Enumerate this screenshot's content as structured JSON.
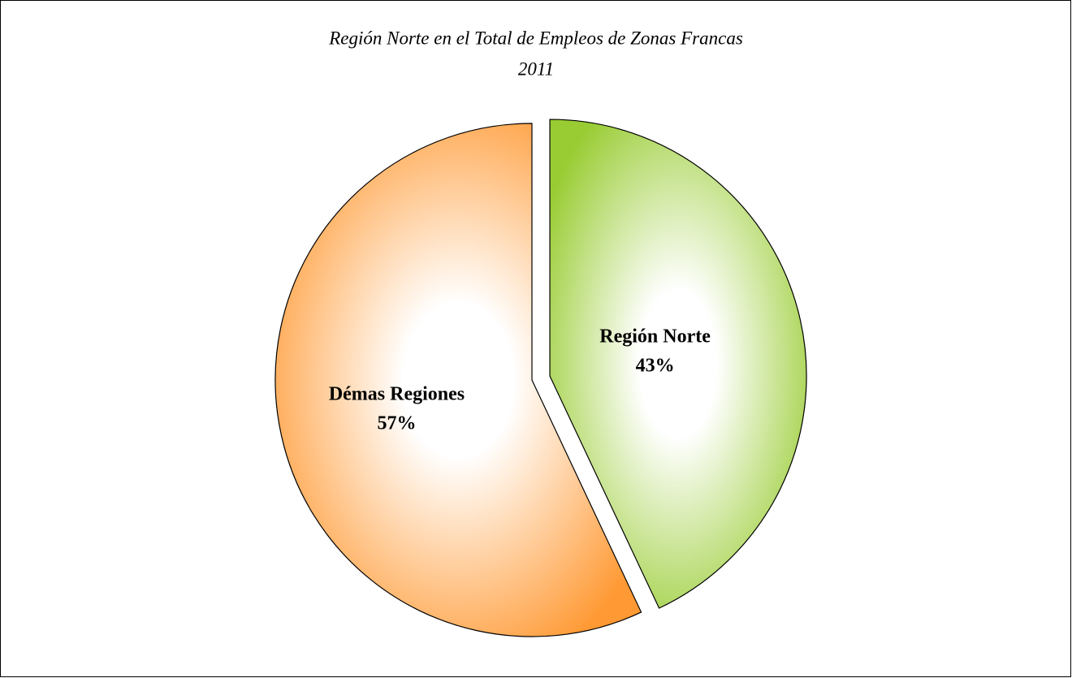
{
  "chart_data": {
    "type": "pie",
    "title": "Región Norte en el Total de Empleos de Zonas Francas",
    "subtitle": "2011",
    "categories": [
      "Región Norte",
      "Démas Regiones"
    ],
    "values": [
      43,
      57
    ],
    "value_labels": [
      "43%",
      "57%"
    ],
    "colors": [
      "#99cc33",
      "#ff9933"
    ]
  }
}
